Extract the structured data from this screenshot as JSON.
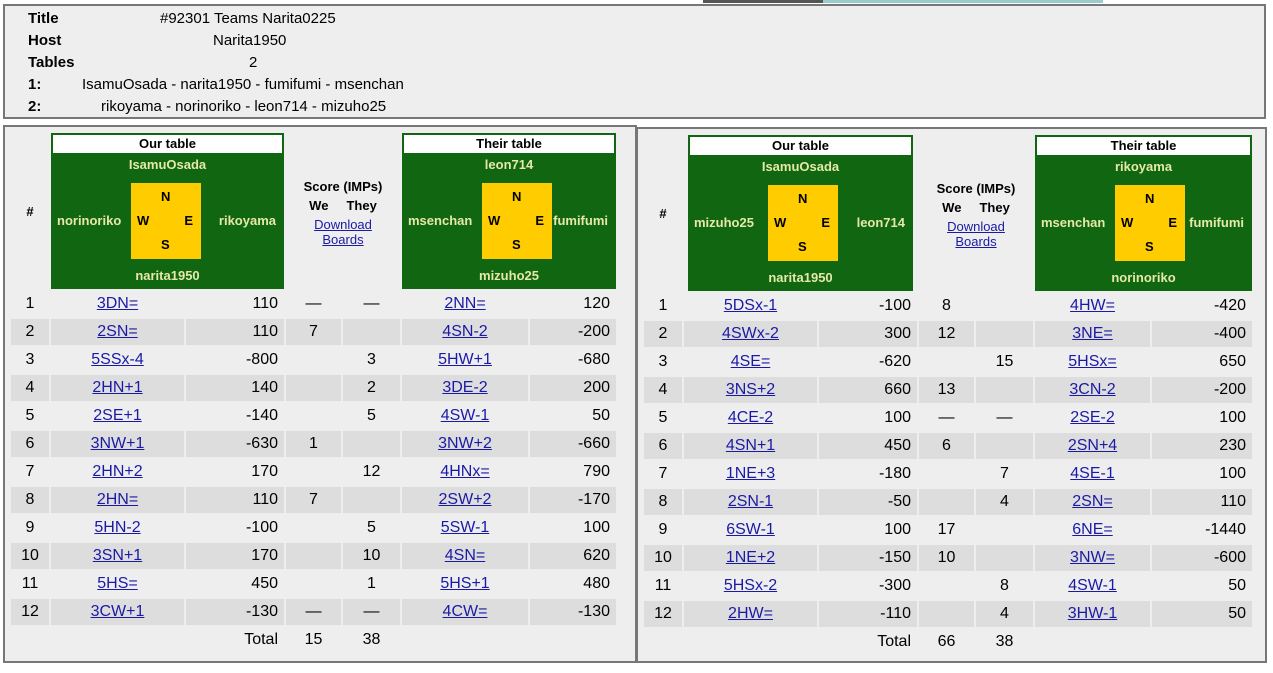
{
  "info": {
    "title_label": "Title",
    "title": "#92301 Teams Narita0225",
    "host_label": "Host",
    "host": "Narita1950",
    "tables_label": "Tables",
    "tables": "2",
    "t1_label": "1:",
    "t1": "IsamuOsada - narita1950 - fumifumi - msenchan",
    "t2_label": "2:",
    "t2": "rikoyama - norinoriko - leon714 - mizuho25"
  },
  "colors": {
    "green": "#116611",
    "compass": "#ffcc00",
    "names": "#e6e8a8",
    "link": "#1a1aa6"
  },
  "panels": [
    {
      "hash": "#",
      "our": {
        "title": "Our table",
        "n": "IsamuOsada",
        "w": "norinoriko",
        "e": "rikoyama",
        "s": "narita1950"
      },
      "their": {
        "title": "Their table",
        "n": "leon714",
        "w": "msenchan",
        "e": "fumifumi",
        "s": "mizuho25"
      },
      "compass": {
        "n": "N",
        "w": "W",
        "e": "E",
        "s": "S"
      },
      "score_title": "Score (IMPs)",
      "we": "We",
      "they": "They",
      "download": "Download Boards",
      "rows": [
        [
          "1",
          "3DN=",
          "110",
          "—",
          "—",
          "2NN=",
          "120"
        ],
        [
          "2",
          "2SN=",
          "110",
          "7",
          "",
          "4SN-2",
          "-200"
        ],
        [
          "3",
          "5SSx-4",
          "-800",
          "",
          "3",
          "5HW+1",
          "-680"
        ],
        [
          "4",
          "2HN+1",
          "140",
          "",
          "2",
          "3DE-2",
          "200"
        ],
        [
          "5",
          "2SE+1",
          "-140",
          "",
          "5",
          "4SW-1",
          "50"
        ],
        [
          "6",
          "3NW+1",
          "-630",
          "1",
          "",
          "3NW+2",
          "-660"
        ],
        [
          "7",
          "2HN+2",
          "170",
          "",
          "12",
          "4HNx=",
          "790"
        ],
        [
          "8",
          "2HN=",
          "110",
          "7",
          "",
          "2SW+2",
          "-170"
        ],
        [
          "9",
          "5HN-2",
          "-100",
          "",
          "5",
          "5SW-1",
          "100"
        ],
        [
          "10",
          "3SN+1",
          "170",
          "",
          "10",
          "4SN=",
          "620"
        ],
        [
          "11",
          "5HS=",
          "450",
          "",
          "1",
          "5HS+1",
          "480"
        ],
        [
          "12",
          "3CW+1",
          "-130",
          "—",
          "—",
          "4CW=",
          "-130"
        ]
      ],
      "total_label": "Total",
      "total_we": "15",
      "total_they": "38"
    },
    {
      "hash": "#",
      "our": {
        "title": "Our table",
        "n": "IsamuOsada",
        "w": "mizuho25",
        "e": "leon714",
        "s": "narita1950"
      },
      "their": {
        "title": "Their table",
        "n": "rikoyama",
        "w": "msenchan",
        "e": "fumifumi",
        "s": "norinoriko"
      },
      "compass": {
        "n": "N",
        "w": "W",
        "e": "E",
        "s": "S"
      },
      "score_title": "Score (IMPs)",
      "we": "We",
      "they": "They",
      "download": "Download Boards",
      "rows": [
        [
          "1",
          "5DSx-1",
          "-100",
          "8",
          "",
          "4HW=",
          "-420"
        ],
        [
          "2",
          "4SWx-2",
          "300",
          "12",
          "",
          "3NE=",
          "-400"
        ],
        [
          "3",
          "4SE=",
          "-620",
          "",
          "15",
          "5HSx=",
          "650"
        ],
        [
          "4",
          "3NS+2",
          "660",
          "13",
          "",
          "3CN-2",
          "-200"
        ],
        [
          "5",
          "4CE-2",
          "100",
          "—",
          "—",
          "2SE-2",
          "100"
        ],
        [
          "6",
          "4SN+1",
          "450",
          "6",
          "",
          "2SN+4",
          "230"
        ],
        [
          "7",
          "1NE+3",
          "-180",
          "",
          "7",
          "4SE-1",
          "100"
        ],
        [
          "8",
          "2SN-1",
          "-50",
          "",
          "4",
          "2SN=",
          "110"
        ],
        [
          "9",
          "6SW-1",
          "100",
          "17",
          "",
          "6NE=",
          "-1440"
        ],
        [
          "10",
          "1NE+2",
          "-150",
          "10",
          "",
          "3NW=",
          "-600"
        ],
        [
          "11",
          "5HSx-2",
          "-300",
          "",
          "8",
          "4SW-1",
          "50"
        ],
        [
          "12",
          "2HW=",
          "-110",
          "",
          "4",
          "3HW-1",
          "50"
        ]
      ],
      "total_label": "Total",
      "total_we": "66",
      "total_they": "38"
    }
  ]
}
